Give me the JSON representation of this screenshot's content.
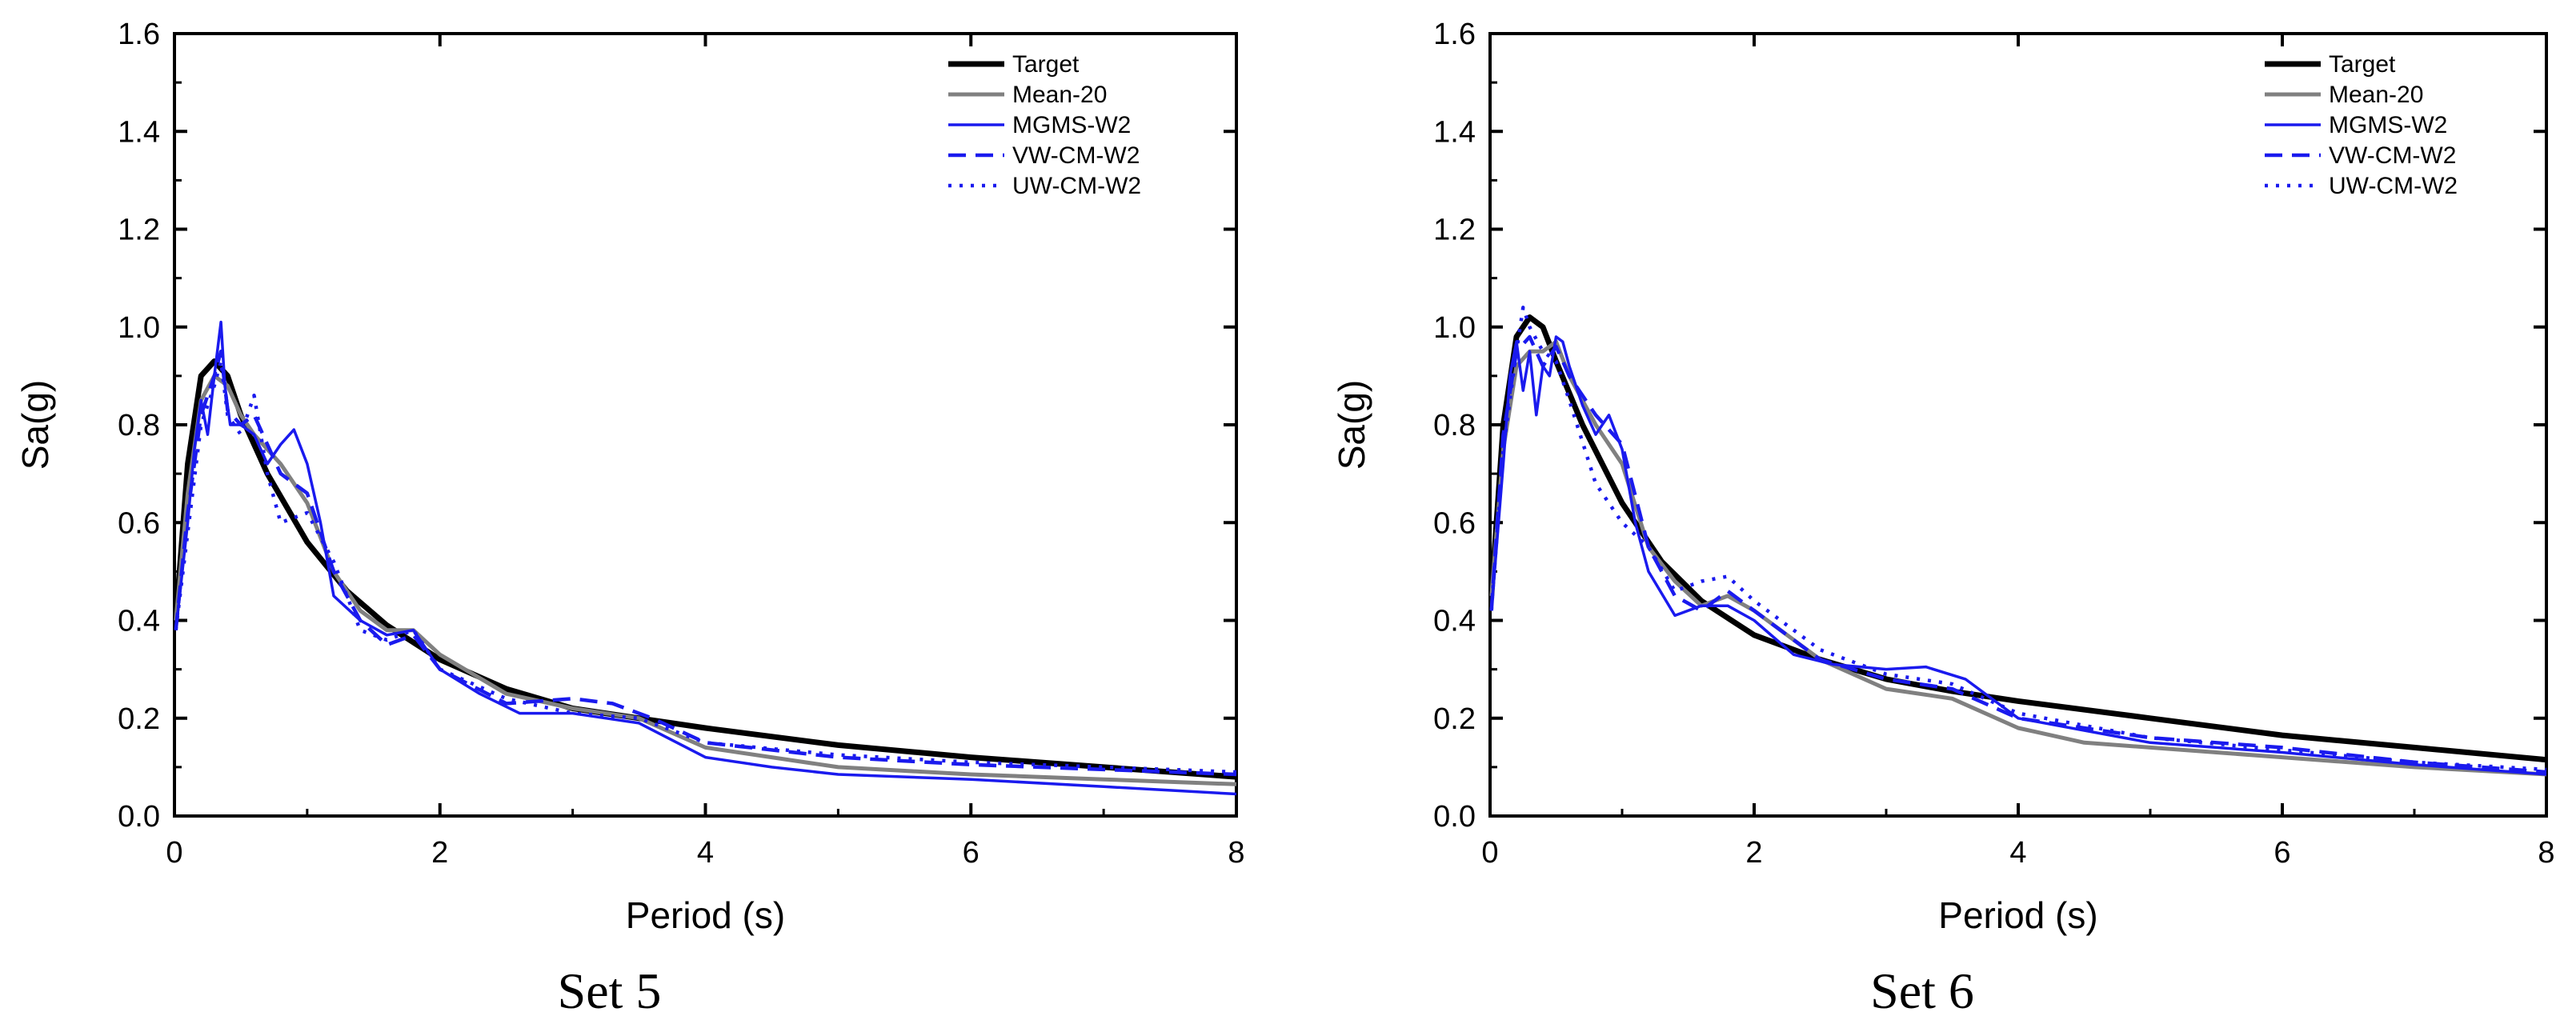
{
  "chart_data": [
    {
      "type": "line",
      "title": "Set 5",
      "xlabel": "Period (s)",
      "ylabel": "Sa(g)",
      "xlim": [
        0,
        8
      ],
      "ylim": [
        0,
        1.6
      ],
      "xticks": [
        "0",
        "2",
        "4",
        "6",
        "8"
      ],
      "yticks": [
        "0.0",
        "0.2",
        "0.4",
        "0.6",
        "0.8",
        "1.0",
        "1.2",
        "1.4",
        "1.6"
      ],
      "legend_position": "top-right",
      "series": [
        {
          "name": "Target",
          "color": "#000000",
          "style": "solid-thick",
          "x": [
            0.01,
            0.1,
            0.2,
            0.3,
            0.4,
            0.5,
            0.7,
            1.0,
            1.3,
            1.6,
            2.0,
            2.5,
            3.0,
            3.5,
            4.0,
            5.0,
            6.0,
            7.0,
            8.0
          ],
          "y": [
            0.4,
            0.72,
            0.9,
            0.93,
            0.9,
            0.82,
            0.7,
            0.56,
            0.46,
            0.39,
            0.32,
            0.26,
            0.22,
            0.2,
            0.18,
            0.145,
            0.12,
            0.1,
            0.08
          ]
        },
        {
          "name": "Mean-20",
          "color": "#808080",
          "style": "solid-medium",
          "x": [
            0.01,
            0.1,
            0.2,
            0.3,
            0.4,
            0.5,
            0.6,
            0.8,
            1.0,
            1.2,
            1.4,
            1.6,
            1.8,
            2.0,
            2.5,
            3.0,
            3.5,
            4.0,
            5.0,
            6.0,
            7.0,
            8.0
          ],
          "y": [
            0.4,
            0.66,
            0.85,
            0.9,
            0.88,
            0.82,
            0.78,
            0.72,
            0.64,
            0.5,
            0.42,
            0.38,
            0.38,
            0.33,
            0.25,
            0.22,
            0.2,
            0.14,
            0.1,
            0.085,
            0.075,
            0.065
          ]
        },
        {
          "name": "MGMS-W2",
          "color": "#1a1aee",
          "style": "solid-thin",
          "x": [
            0.01,
            0.1,
            0.15,
            0.2,
            0.25,
            0.3,
            0.35,
            0.38,
            0.42,
            0.5,
            0.6,
            0.7,
            0.8,
            0.9,
            1.0,
            1.1,
            1.2,
            1.4,
            1.6,
            1.8,
            2.0,
            2.3,
            2.6,
            3.0,
            3.5,
            4.0,
            4.5,
            5.0,
            6.0,
            7.0,
            8.0
          ],
          "y": [
            0.38,
            0.6,
            0.75,
            0.85,
            0.78,
            0.9,
            1.01,
            0.88,
            0.8,
            0.8,
            0.78,
            0.72,
            0.76,
            0.79,
            0.72,
            0.6,
            0.45,
            0.4,
            0.37,
            0.38,
            0.3,
            0.25,
            0.21,
            0.21,
            0.19,
            0.12,
            0.1,
            0.085,
            0.075,
            0.06,
            0.045
          ]
        },
        {
          "name": "VW-CM-W2",
          "color": "#1a1aee",
          "style": "dashed",
          "x": [
            0.01,
            0.1,
            0.2,
            0.3,
            0.35,
            0.4,
            0.5,
            0.6,
            0.8,
            1.0,
            1.2,
            1.4,
            1.6,
            1.8,
            2.0,
            2.5,
            3.0,
            3.3,
            3.6,
            4.0,
            5.0,
            6.0,
            7.0,
            8.0
          ],
          "y": [
            0.38,
            0.62,
            0.82,
            0.9,
            0.95,
            0.83,
            0.8,
            0.82,
            0.7,
            0.66,
            0.5,
            0.4,
            0.35,
            0.37,
            0.3,
            0.23,
            0.24,
            0.23,
            0.2,
            0.15,
            0.12,
            0.105,
            0.095,
            0.085
          ]
        },
        {
          "name": "UW-CM-W2",
          "color": "#1a1aee",
          "style": "dotted",
          "x": [
            0.01,
            0.1,
            0.2,
            0.3,
            0.35,
            0.4,
            0.5,
            0.6,
            0.7,
            0.8,
            1.0,
            1.2,
            1.4,
            1.6,
            1.8,
            2.0,
            2.5,
            3.0,
            3.5,
            4.0,
            5.0,
            6.0,
            7.0,
            8.0
          ],
          "y": [
            0.38,
            0.58,
            0.8,
            0.88,
            0.93,
            0.82,
            0.78,
            0.86,
            0.7,
            0.6,
            0.62,
            0.52,
            0.38,
            0.36,
            0.38,
            0.3,
            0.24,
            0.21,
            0.2,
            0.15,
            0.125,
            0.11,
            0.1,
            0.09
          ]
        }
      ]
    },
    {
      "type": "line",
      "title": "Set 6",
      "xlabel": "Period (s)",
      "ylabel": "Sa(g)",
      "xlim": [
        0,
        8
      ],
      "ylim": [
        0,
        1.6
      ],
      "xticks": [
        "0",
        "2",
        "4",
        "6",
        "8"
      ],
      "yticks": [
        "0.0",
        "0.2",
        "0.4",
        "0.6",
        "0.8",
        "1.0",
        "1.2",
        "1.4",
        "1.6"
      ],
      "legend_position": "top-right",
      "series": [
        {
          "name": "Target",
          "color": "#000000",
          "style": "solid-thick",
          "x": [
            0.01,
            0.1,
            0.2,
            0.3,
            0.4,
            0.5,
            0.7,
            1.0,
            1.3,
            1.6,
            2.0,
            2.5,
            3.0,
            3.5,
            4.0,
            5.0,
            6.0,
            7.0,
            8.0
          ],
          "y": [
            0.45,
            0.8,
            0.98,
            1.02,
            1.0,
            0.93,
            0.8,
            0.64,
            0.52,
            0.44,
            0.37,
            0.32,
            0.28,
            0.255,
            0.235,
            0.2,
            0.165,
            0.14,
            0.115
          ]
        },
        {
          "name": "Mean-20",
          "color": "#808080",
          "style": "solid-medium",
          "x": [
            0.01,
            0.1,
            0.2,
            0.3,
            0.4,
            0.5,
            0.6,
            0.8,
            1.0,
            1.2,
            1.4,
            1.6,
            1.8,
            2.0,
            2.5,
            3.0,
            3.5,
            4.0,
            4.5,
            5.0,
            6.0,
            7.0,
            8.0
          ],
          "y": [
            0.45,
            0.75,
            0.92,
            0.95,
            0.95,
            0.97,
            0.9,
            0.8,
            0.72,
            0.55,
            0.48,
            0.43,
            0.45,
            0.42,
            0.32,
            0.26,
            0.24,
            0.18,
            0.15,
            0.14,
            0.12,
            0.1,
            0.085
          ]
        },
        {
          "name": "MGMS-W2",
          "color": "#1a1aee",
          "style": "solid-thin",
          "x": [
            0.01,
            0.1,
            0.15,
            0.2,
            0.25,
            0.3,
            0.35,
            0.4,
            0.45,
            0.5,
            0.55,
            0.6,
            0.7,
            0.8,
            0.9,
            1.0,
            1.1,
            1.2,
            1.4,
            1.6,
            1.8,
            2.0,
            2.3,
            2.6,
            3.0,
            3.3,
            3.6,
            4.0,
            5.0,
            6.0,
            7.0,
            8.0
          ],
          "y": [
            0.42,
            0.72,
            0.9,
            0.97,
            0.87,
            0.95,
            0.82,
            0.92,
            0.9,
            0.98,
            0.97,
            0.92,
            0.84,
            0.78,
            0.82,
            0.75,
            0.6,
            0.5,
            0.41,
            0.43,
            0.43,
            0.4,
            0.33,
            0.31,
            0.3,
            0.305,
            0.28,
            0.2,
            0.15,
            0.13,
            0.105,
            0.085
          ]
        },
        {
          "name": "VW-CM-W2",
          "color": "#1a1aee",
          "style": "dashed",
          "x": [
            0.01,
            0.1,
            0.2,
            0.3,
            0.4,
            0.5,
            0.6,
            0.8,
            1.0,
            1.2,
            1.4,
            1.6,
            1.8,
            2.0,
            2.5,
            3.0,
            3.5,
            4.0,
            5.0,
            6.0,
            7.0,
            8.0
          ],
          "y": [
            0.42,
            0.78,
            0.95,
            0.98,
            0.92,
            0.96,
            0.9,
            0.82,
            0.76,
            0.55,
            0.45,
            0.42,
            0.46,
            0.42,
            0.32,
            0.28,
            0.26,
            0.2,
            0.16,
            0.14,
            0.11,
            0.09
          ]
        },
        {
          "name": "UW-CM-W2",
          "color": "#1a1aee",
          "style": "dotted",
          "x": [
            0.01,
            0.1,
            0.2,
            0.25,
            0.3,
            0.4,
            0.5,
            0.6,
            0.8,
            1.0,
            1.2,
            1.4,
            1.6,
            1.8,
            2.0,
            2.5,
            3.0,
            3.5,
            4.0,
            5.0,
            6.0,
            7.0,
            8.0
          ],
          "y": [
            0.42,
            0.75,
            0.95,
            1.04,
            1.0,
            0.95,
            0.93,
            0.85,
            0.68,
            0.6,
            0.55,
            0.46,
            0.48,
            0.49,
            0.44,
            0.34,
            0.29,
            0.27,
            0.21,
            0.16,
            0.135,
            0.11,
            0.095
          ]
        }
      ]
    }
  ]
}
